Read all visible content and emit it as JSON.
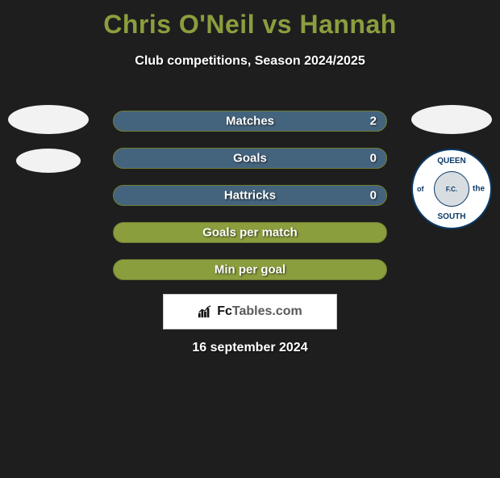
{
  "title": "Chris O'Neil vs Hannah",
  "subtitle": "Club competitions, Season 2024/2025",
  "date": "16 september 2024",
  "colors": {
    "background": "#1e1e1e",
    "accent": "#8b9e3e",
    "bar_fill": "#44637d",
    "crest_border": "#0b3a66",
    "text": "#ffffff"
  },
  "crest": {
    "top": "QUEEN",
    "bottom": "SOUTH",
    "left": "of",
    "right": "the",
    "center": "F.C."
  },
  "logo": {
    "brand1": "Fc",
    "brand2": "Tables.com"
  },
  "bars": [
    {
      "label": "Matches",
      "value": "2",
      "fill_pct": 100,
      "show_value": true
    },
    {
      "label": "Goals",
      "value": "0",
      "fill_pct": 100,
      "show_value": true
    },
    {
      "label": "Hattricks",
      "value": "0",
      "fill_pct": 100,
      "show_value": true
    },
    {
      "label": "Goals per match",
      "value": "",
      "fill_pct": 0,
      "show_value": false
    },
    {
      "label": "Min per goal",
      "value": "",
      "fill_pct": 0,
      "show_value": false
    }
  ]
}
